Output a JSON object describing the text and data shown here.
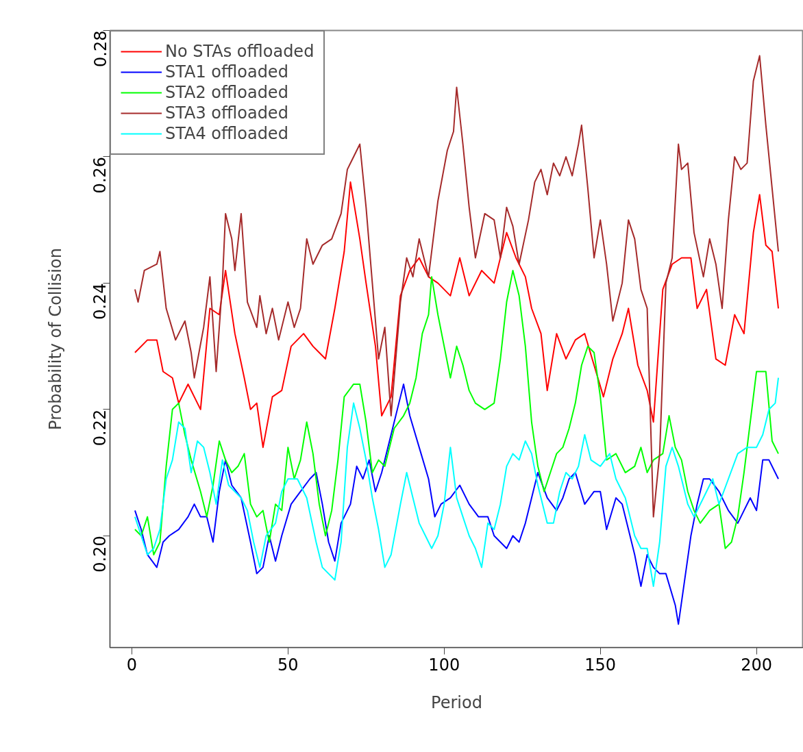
{
  "chart_data": {
    "type": "line",
    "xlabel": "Period",
    "ylabel": "Probability of Collision",
    "xlim": [
      -7,
      215
    ],
    "ylim": [
      0.1823,
      0.28
    ],
    "xticks": [
      0,
      50,
      100,
      150,
      200
    ],
    "yticks": [
      {
        "value": 0.2,
        "label": "0.20"
      },
      {
        "value": 0.22,
        "label": "0.22"
      },
      {
        "value": 0.24,
        "label": "0.24"
      },
      {
        "value": 0.26,
        "label": "0.26"
      },
      {
        "value": 0.28,
        "label": "0.28"
      }
    ],
    "legend": "top left",
    "line_style": "solid",
    "series": [
      {
        "name": "No STAs offloaded",
        "color": "#ff0000",
        "x": [
          1,
          5,
          8,
          10,
          13,
          15,
          18,
          22,
          25,
          28,
          30,
          33,
          36,
          38,
          40,
          42,
          45,
          48,
          51,
          55,
          58,
          62,
          65,
          68,
          70,
          73,
          75,
          78,
          80,
          83,
          86,
          89,
          92,
          95,
          98,
          102,
          105,
          108,
          112,
          116,
          120,
          123,
          126,
          128,
          131,
          133,
          136,
          139,
          142,
          145,
          148,
          151,
          154,
          157,
          159,
          162,
          165,
          167,
          170,
          173,
          176,
          179,
          181,
          184,
          187,
          190,
          193,
          196,
          199,
          201,
          203,
          205,
          207
        ],
        "values": [
          0.229,
          0.231,
          0.231,
          0.226,
          0.225,
          0.221,
          0.224,
          0.22,
          0.236,
          0.235,
          0.242,
          0.232,
          0.225,
          0.22,
          0.221,
          0.214,
          0.222,
          0.223,
          0.23,
          0.232,
          0.23,
          0.228,
          0.236,
          0.245,
          0.256,
          0.247,
          0.24,
          0.23,
          0.219,
          0.222,
          0.238,
          0.242,
          0.244,
          0.241,
          0.24,
          0.238,
          0.244,
          0.238,
          0.242,
          0.24,
          0.248,
          0.244,
          0.241,
          0.236,
          0.232,
          0.223,
          0.232,
          0.228,
          0.231,
          0.232,
          0.227,
          0.222,
          0.228,
          0.232,
          0.236,
          0.227,
          0.223,
          0.218,
          0.239,
          0.243,
          0.244,
          0.244,
          0.236,
          0.239,
          0.228,
          0.227,
          0.235,
          0.232,
          0.248,
          0.254,
          0.246,
          0.245,
          0.236
        ]
      },
      {
        "name": "STA1 offloaded",
        "color": "#0000ff",
        "x": [
          1,
          3,
          5,
          8,
          10,
          12,
          15,
          18,
          20,
          22,
          24,
          26,
          28,
          30,
          32,
          35,
          38,
          40,
          42,
          44,
          46,
          48,
          51,
          54,
          57,
          59,
          61,
          63,
          65,
          67,
          70,
          72,
          74,
          76,
          78,
          80,
          83,
          86,
          87,
          89,
          92,
          95,
          97,
          99,
          102,
          105,
          108,
          111,
          114,
          116,
          118,
          120,
          122,
          124,
          126,
          128,
          130,
          133,
          136,
          138,
          140,
          142,
          145,
          148,
          150,
          152,
          155,
          157,
          159,
          161,
          163,
          165,
          167,
          169,
          171,
          174,
          175,
          177,
          179,
          181,
          183,
          185,
          188,
          191,
          194,
          196,
          198,
          200,
          202,
          204,
          207
        ],
        "values": [
          0.204,
          0.201,
          0.197,
          0.195,
          0.199,
          0.2,
          0.201,
          0.203,
          0.205,
          0.203,
          0.203,
          0.199,
          0.207,
          0.212,
          0.208,
          0.206,
          0.199,
          0.194,
          0.195,
          0.2,
          0.196,
          0.2,
          0.205,
          0.207,
          0.209,
          0.21,
          0.205,
          0.199,
          0.196,
          0.202,
          0.205,
          0.211,
          0.209,
          0.212,
          0.207,
          0.21,
          0.216,
          0.222,
          0.224,
          0.219,
          0.214,
          0.209,
          0.203,
          0.205,
          0.206,
          0.208,
          0.205,
          0.203,
          0.203,
          0.2,
          0.199,
          0.198,
          0.2,
          0.199,
          0.202,
          0.206,
          0.21,
          0.206,
          0.204,
          0.206,
          0.209,
          0.21,
          0.205,
          0.207,
          0.207,
          0.201,
          0.206,
          0.205,
          0.201,
          0.197,
          0.192,
          0.197,
          0.195,
          0.194,
          0.194,
          0.189,
          0.186,
          0.193,
          0.2,
          0.205,
          0.209,
          0.209,
          0.207,
          0.204,
          0.202,
          0.204,
          0.206,
          0.204,
          0.212,
          0.212,
          0.209
        ]
      },
      {
        "name": "STA2 offloaded",
        "color": "#00ff00",
        "x": [
          1,
          3,
          5,
          7,
          9,
          11,
          13,
          15,
          17,
          19,
          22,
          24,
          26,
          28,
          30,
          32,
          34,
          36,
          38,
          40,
          42,
          44,
          46,
          48,
          50,
          52,
          54,
          56,
          58,
          60,
          62,
          64,
          66,
          68,
          71,
          73,
          75,
          77,
          79,
          81,
          84,
          87,
          89,
          91,
          93,
          95,
          96,
          98,
          100,
          102,
          104,
          106,
          108,
          110,
          113,
          116,
          118,
          120,
          122,
          124,
          126,
          128,
          130,
          132,
          134,
          136,
          138,
          140,
          142,
          144,
          146,
          148,
          150,
          152,
          155,
          158,
          161,
          163,
          165,
          167,
          170,
          172,
          174,
          176,
          178,
          180,
          182,
          185,
          188,
          190,
          192,
          194,
          196,
          198,
          200,
          203,
          205,
          207
        ],
        "values": [
          0.201,
          0.2,
          0.203,
          0.197,
          0.199,
          0.211,
          0.22,
          0.221,
          0.216,
          0.212,
          0.207,
          0.203,
          0.208,
          0.215,
          0.212,
          0.21,
          0.211,
          0.213,
          0.205,
          0.203,
          0.204,
          0.199,
          0.205,
          0.204,
          0.214,
          0.209,
          0.212,
          0.218,
          0.213,
          0.205,
          0.2,
          0.204,
          0.212,
          0.222,
          0.224,
          0.224,
          0.218,
          0.21,
          0.212,
          0.211,
          0.217,
          0.219,
          0.221,
          0.225,
          0.232,
          0.235,
          0.241,
          0.235,
          0.23,
          0.225,
          0.23,
          0.227,
          0.223,
          0.221,
          0.22,
          0.221,
          0.228,
          0.237,
          0.242,
          0.238,
          0.23,
          0.218,
          0.211,
          0.207,
          0.21,
          0.213,
          0.214,
          0.217,
          0.221,
          0.227,
          0.23,
          0.229,
          0.222,
          0.212,
          0.213,
          0.21,
          0.211,
          0.214,
          0.21,
          0.212,
          0.213,
          0.219,
          0.214,
          0.212,
          0.207,
          0.204,
          0.202,
          0.204,
          0.205,
          0.198,
          0.199,
          0.203,
          0.21,
          0.218,
          0.226,
          0.226,
          0.215,
          0.213
        ]
      },
      {
        "name": "STA3 offloaded",
        "color": "#a52a2a",
        "x": [
          1,
          2,
          4,
          8,
          9,
          11,
          14,
          17,
          19,
          20,
          23,
          25,
          27,
          29,
          30,
          32,
          33,
          35,
          37,
          40,
          41,
          43,
          45,
          47,
          50,
          52,
          54,
          56,
          58,
          61,
          64,
          67,
          69,
          71,
          73,
          75,
          77,
          79,
          81,
          83,
          86,
          88,
          90,
          92,
          95,
          98,
          101,
          103,
          104,
          106,
          108,
          110,
          113,
          116,
          118,
          120,
          122,
          124,
          127,
          129,
          131,
          133,
          135,
          137,
          139,
          141,
          143,
          144,
          146,
          148,
          150,
          152,
          154,
          157,
          159,
          161,
          163,
          165,
          167,
          169,
          171,
          173,
          175,
          176,
          178,
          180,
          183,
          185,
          187,
          189,
          191,
          193,
          195,
          197,
          199,
          201,
          203,
          205,
          207
        ],
        "values": [
          0.239,
          0.237,
          0.242,
          0.243,
          0.245,
          0.236,
          0.231,
          0.234,
          0.229,
          0.225,
          0.233,
          0.241,
          0.226,
          0.24,
          0.251,
          0.247,
          0.242,
          0.251,
          0.237,
          0.233,
          0.238,
          0.232,
          0.236,
          0.231,
          0.237,
          0.233,
          0.236,
          0.247,
          0.243,
          0.246,
          0.247,
          0.251,
          0.258,
          0.26,
          0.262,
          0.252,
          0.24,
          0.228,
          0.233,
          0.219,
          0.237,
          0.244,
          0.241,
          0.247,
          0.241,
          0.253,
          0.261,
          0.264,
          0.271,
          0.262,
          0.252,
          0.244,
          0.251,
          0.25,
          0.244,
          0.252,
          0.249,
          0.243,
          0.25,
          0.256,
          0.258,
          0.254,
          0.259,
          0.257,
          0.26,
          0.257,
          0.262,
          0.265,
          0.255,
          0.244,
          0.25,
          0.243,
          0.234,
          0.24,
          0.25,
          0.247,
          0.239,
          0.236,
          0.203,
          0.213,
          0.24,
          0.244,
          0.262,
          0.258,
          0.259,
          0.248,
          0.241,
          0.247,
          0.243,
          0.236,
          0.25,
          0.26,
          0.258,
          0.259,
          0.272,
          0.276,
          0.265,
          0.255,
          0.245
        ]
      },
      {
        "name": "STA4 offloaded",
        "color": "#00ffff",
        "x": [
          1,
          3,
          5,
          7,
          9,
          11,
          13,
          15,
          17,
          19,
          21,
          23,
          25,
          27,
          29,
          31,
          33,
          35,
          37,
          39,
          41,
          43,
          46,
          48,
          50,
          53,
          56,
          59,
          61,
          63,
          65,
          67,
          69,
          71,
          73,
          75,
          77,
          79,
          81,
          83,
          86,
          88,
          90,
          92,
          94,
          96,
          98,
          100,
          102,
          104,
          106,
          108,
          110,
          112,
          114,
          116,
          118,
          120,
          122,
          124,
          126,
          128,
          130,
          133,
          135,
          137,
          139,
          141,
          143,
          145,
          147,
          150,
          153,
          155,
          158,
          161,
          163,
          165,
          167,
          169,
          171,
          173,
          175,
          178,
          180,
          183,
          186,
          188,
          191,
          194,
          197,
          200,
          202,
          204,
          206,
          207
        ],
        "values": [
          0.203,
          0.2,
          0.197,
          0.198,
          0.201,
          0.209,
          0.212,
          0.218,
          0.217,
          0.21,
          0.215,
          0.214,
          0.21,
          0.205,
          0.212,
          0.208,
          0.207,
          0.206,
          0.204,
          0.199,
          0.195,
          0.2,
          0.202,
          0.207,
          0.209,
          0.209,
          0.206,
          0.199,
          0.195,
          0.194,
          0.193,
          0.199,
          0.214,
          0.221,
          0.217,
          0.212,
          0.206,
          0.201,
          0.195,
          0.197,
          0.205,
          0.21,
          0.206,
          0.202,
          0.2,
          0.198,
          0.2,
          0.205,
          0.214,
          0.206,
          0.203,
          0.2,
          0.198,
          0.195,
          0.202,
          0.201,
          0.205,
          0.211,
          0.213,
          0.212,
          0.215,
          0.213,
          0.208,
          0.202,
          0.202,
          0.207,
          0.21,
          0.209,
          0.211,
          0.216,
          0.212,
          0.211,
          0.213,
          0.209,
          0.206,
          0.2,
          0.198,
          0.198,
          0.192,
          0.199,
          0.211,
          0.214,
          0.211,
          0.205,
          0.203,
          0.206,
          0.209,
          0.205,
          0.209,
          0.213,
          0.214,
          0.214,
          0.216,
          0.22,
          0.221,
          0.225
        ]
      }
    ]
  }
}
